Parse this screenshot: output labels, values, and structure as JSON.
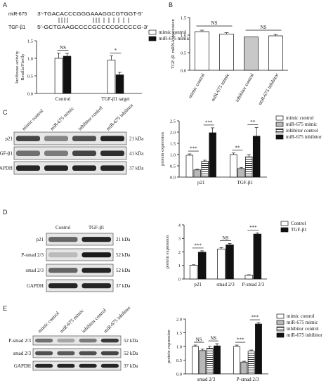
{
  "panels": {
    "A": {
      "letter": "A",
      "seq_top_label": "miR-675",
      "seq_top": "3'-TGACACCCGGGAAAGGCGTGGT-5'",
      "seq_bottom_label": "TGF-β1",
      "seq_bottom": "5'-GCTGAAGCCCCGCCCCGCCCCG-3'"
    },
    "B": {
      "letter": "B"
    },
    "C": {
      "letter": "C",
      "lane_labels": [
        "mimic control",
        "miR-675 mimic",
        "inhibitor control",
        "miR-675 inhibitor"
      ],
      "blot_rows": [
        {
          "label": "p21",
          "kda": "21 kDa"
        },
        {
          "label": "TGF-β1",
          "kda": "41 kDa"
        },
        {
          "label": "GAPDH",
          "kda": "37 kDa"
        }
      ]
    },
    "D": {
      "letter": "D",
      "lane_labels": [
        "Control",
        "TGF-β1"
      ],
      "blot_rows": [
        {
          "label": "p21",
          "kda": "21 kDa"
        },
        {
          "label": "P-smad 2/3",
          "kda": "52 kDa"
        },
        {
          "label": "smad 2/3",
          "kda": "52 kDa"
        },
        {
          "label": "GAPDH",
          "kda": "37 kDa"
        }
      ]
    },
    "E": {
      "letter": "E",
      "lane_labels": [
        "mimic control",
        "miR-675 mimic",
        "inhibitor control",
        "miR-675 inhibitor"
      ],
      "blot_rows": [
        {
          "label": "P-smad 2/3",
          "kda": "52 kDa"
        },
        {
          "label": "smad 2/3",
          "kda": "52 kDa"
        },
        {
          "label": "GAPDH",
          "kda": "37 kDa"
        }
      ]
    }
  },
  "chart_data": [
    {
      "id": "A",
      "type": "bar",
      "categories": [
        "Control",
        "TGF-β1 target"
      ],
      "ylabel": "luciferase activity\nRenilla/Firefly",
      "ylim": [
        0,
        1.5
      ],
      "yticks": [
        "0.0",
        "0.5",
        "1.0",
        "1.5"
      ],
      "series": [
        {
          "name": "mimic control",
          "values": [
            1.0,
            0.95
          ],
          "errors": [
            0.15,
            0.12
          ],
          "fill": "#ffffff"
        },
        {
          "name": "miR-675 mimic",
          "values": [
            1.06,
            0.53
          ],
          "errors": [
            0.08,
            0.07
          ],
          "fill": "#111111"
        }
      ],
      "annotations": [
        {
          "group": 0,
          "text": "NS"
        },
        {
          "group": 1,
          "text": "*"
        }
      ]
    },
    {
      "id": "B",
      "type": "bar",
      "categories": [
        "mimic control",
        "miR-675 mimic",
        "inhibitor control",
        "miR-675 inhibitor"
      ],
      "ylabel": "TGF-β1 mRNA expression",
      "ylim": [
        0,
        1.5
      ],
      "yticks": [
        "0.0",
        "0.5",
        "1.0",
        "1.5"
      ],
      "values": [
        1.1,
        1.03,
        0.95,
        0.98
      ],
      "errors": [
        0.04,
        0.04,
        0.0,
        0.04
      ],
      "fills": [
        "#ffffff",
        "#ffffff",
        "#c8c8c8",
        "#ffffff"
      ],
      "annotations": [
        {
          "pair": [
            0,
            1
          ],
          "text": "NS"
        },
        {
          "pair": [
            2,
            3
          ],
          "text": "NS"
        }
      ]
    },
    {
      "id": "C",
      "type": "bar",
      "categories": [
        "p21",
        "TGF-β1"
      ],
      "ylabel": "protein expression",
      "ylim": [
        0,
        2.5
      ],
      "yticks": [
        "0.0",
        "0.5",
        "1.0",
        "1.5",
        "2.0",
        "2.5"
      ],
      "series": [
        {
          "name": "mimic control",
          "values": [
            0.97,
            1.0
          ],
          "errors": [
            0.06,
            0.07
          ],
          "fill": "#ffffff"
        },
        {
          "name": "miR-675 mimic",
          "values": [
            0.32,
            0.38
          ],
          "errors": [
            0.03,
            0.05
          ],
          "fill": "#b8b8b8"
        },
        {
          "name": "inhibitor control",
          "values": [
            0.7,
            0.9
          ],
          "errors": [
            0.05,
            0.1
          ],
          "fill": "hatch"
        },
        {
          "name": "miR-675 inhibitor",
          "values": [
            1.97,
            1.82
          ],
          "errors": [
            0.22,
            0.38
          ],
          "fill": "#111111"
        }
      ],
      "annotations": [
        {
          "group": 0,
          "pair": [
            0,
            1
          ],
          "text": "***"
        },
        {
          "group": 0,
          "pair": [
            2,
            3
          ],
          "text": "***"
        },
        {
          "group": 1,
          "pair": [
            0,
            1
          ],
          "text": "**"
        },
        {
          "group": 1,
          "pair": [
            2,
            3
          ],
          "text": "**"
        }
      ]
    },
    {
      "id": "D",
      "type": "bar",
      "categories": [
        "p21",
        "smad 2/3",
        "P-smad 2/3"
      ],
      "ylabel": "protein expression",
      "ylim": [
        0,
        4
      ],
      "yticks": [
        "0",
        "1",
        "2",
        "3",
        "4"
      ],
      "series": [
        {
          "name": "Control",
          "values": [
            1.02,
            2.22,
            0.28
          ],
          "errors": [
            0.03,
            0.1,
            0.03
          ],
          "fill": "#ffffff"
        },
        {
          "name": "TGF-β1",
          "values": [
            1.98,
            2.52,
            3.32
          ],
          "errors": [
            0.1,
            0.1,
            0.08
          ],
          "fill": "#111111"
        }
      ],
      "annotations": [
        {
          "group": 0,
          "text": "***"
        },
        {
          "group": 1,
          "text": "NS"
        },
        {
          "group": 2,
          "text": "***"
        }
      ]
    },
    {
      "id": "E",
      "type": "bar",
      "categories": [
        "smad 2/3",
        "P-smad 2/3"
      ],
      "ylabel": "protein expression",
      "ylim": [
        0,
        2.0
      ],
      "yticks": [
        "0.0",
        "0.5",
        "1.0",
        "1.5",
        "2.0"
      ],
      "series": [
        {
          "name": "mimic control",
          "values": [
            1.0,
            1.0
          ],
          "errors": [
            0.05,
            0.05
          ],
          "fill": "#ffffff"
        },
        {
          "name": "miR-675 mimic",
          "values": [
            0.85,
            0.43
          ],
          "errors": [
            0.05,
            0.03
          ],
          "fill": "#b8b8b8"
        },
        {
          "name": "inhibitor control",
          "values": [
            0.93,
            0.83
          ],
          "errors": [
            0.07,
            0.04
          ],
          "fill": "hatch"
        },
        {
          "name": "miR-675 inhibitor",
          "values": [
            1.02,
            1.82
          ],
          "errors": [
            0.08,
            0.05
          ],
          "fill": "#111111"
        }
      ],
      "annotations": [
        {
          "group": 0,
          "pair": [
            0,
            1
          ],
          "text": "NS"
        },
        {
          "group": 0,
          "pair": [
            2,
            3
          ],
          "text": "NS"
        },
        {
          "group": 1,
          "pair": [
            0,
            1
          ],
          "text": "***"
        },
        {
          "group": 1,
          "pair": [
            2,
            3
          ],
          "text": "***"
        }
      ]
    }
  ]
}
